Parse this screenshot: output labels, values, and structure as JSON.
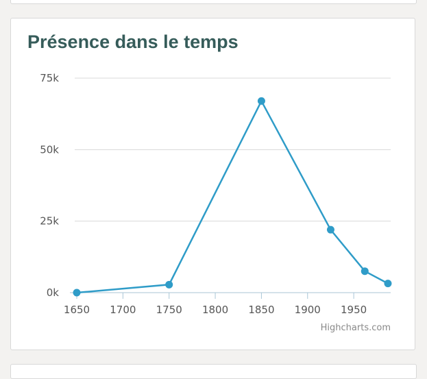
{
  "chart_data": {
    "type": "line",
    "title": "Présence dans le temps",
    "xlabel": "",
    "ylabel": "",
    "x": [
      1650,
      1750,
      1850,
      1925,
      1962,
      1987
    ],
    "series": [
      {
        "values": [
          0,
          2800,
          67000,
          22000,
          7500,
          3200
        ]
      }
    ],
    "xlim": [
      1650,
      1990
    ],
    "ylim": [
      0,
      75000
    ],
    "x_ticks": [
      1650,
      1700,
      1750,
      1800,
      1850,
      1900,
      1950
    ],
    "x_tick_labels": [
      "1650",
      "1700",
      "1750",
      "1800",
      "1850",
      "1900",
      "1950"
    ],
    "y_ticks": [
      0,
      25000,
      50000,
      75000
    ],
    "y_tick_labels": [
      "0k",
      "25k",
      "50k",
      "75k"
    ],
    "grid": true,
    "legend": "none",
    "series_color": "#2f9cc8",
    "grid_color": "#d8d8d8",
    "axis_color": "#a9c6d6"
  },
  "credits": "Highcharts.com"
}
